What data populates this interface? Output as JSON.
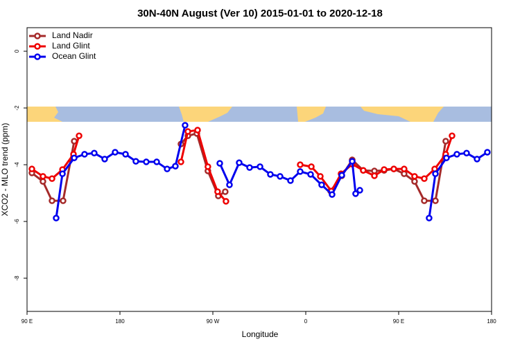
{
  "chart_data": {
    "type": "line",
    "title": "30N-40N August (Ver 10)   2015-01-01 to 2020-12-18",
    "x_label": "Longitude",
    "y_label": "XCO2 - MLO trend (ppm)",
    "xlim": [
      90,
      540
    ],
    "ylim": [
      -9.17,
      0.83
    ],
    "xticks": [
      {
        "value": 90,
        "label": "90 E"
      },
      {
        "value": 180,
        "label": "180"
      },
      {
        "value": 270,
        "label": "90 W"
      },
      {
        "value": 360,
        "label": "0"
      },
      {
        "value": 450,
        "label": "90 E"
      },
      {
        "value": 540,
        "label": "180"
      }
    ],
    "yticks": [
      0,
      -2,
      -4,
      -6,
      -8
    ],
    "legend": "top-left",
    "series": [
      {
        "name": "Land Nadir",
        "color": "#a52a2a",
        "x": [
          94.7,
          105.4,
          114.2,
          124.9,
          135.7,
          null,
          239.1,
          245.8,
          254.5,
          265.2,
          275.3,
          282.0,
          null,
          384.1,
          394.9,
          405.0,
          415.7,
          426.5,
          435.9,
          445.3,
          455.3,
          465.4,
          474.8,
          485.6,
          495.6
        ],
        "values": [
          -4.29,
          -4.59,
          -5.27,
          -5.27,
          -3.17,
          null,
          -3.27,
          -2.98,
          -2.9,
          -4.22,
          -5.1,
          -4.95,
          null,
          -4.93,
          -4.39,
          -3.83,
          -4.2,
          -4.22,
          -4.2,
          -4.15,
          -4.32,
          -4.59,
          -5.27,
          -5.27,
          -3.17
        ]
      },
      {
        "name": "Land Glint",
        "color": "#ee0000",
        "x": [
          94.7,
          105.4,
          114.2,
          124.3,
          135.0,
          140.4,
          null,
          239.1,
          245.8,
          255.2,
          265.2,
          274.6,
          282.7,
          null,
          354.6,
          365.4,
          374.1,
          384.8,
          394.2,
          405.0,
          415.7,
          426.5,
          435.9,
          445.3,
          455.3,
          465.4,
          474.8,
          484.9,
          495.6,
          501.7
        ],
        "values": [
          -4.15,
          -4.41,
          -4.49,
          -4.17,
          -3.63,
          -2.98,
          null,
          -3.9,
          -2.83,
          -2.78,
          -4.07,
          -4.95,
          -5.29,
          null,
          -4.0,
          -4.07,
          -4.41,
          -4.93,
          -4.32,
          -3.98,
          -4.2,
          -4.39,
          -4.17,
          -4.15,
          -4.15,
          -4.41,
          -4.49,
          -4.15,
          -3.63,
          -2.98
        ]
      },
      {
        "name": "Ocean Glint",
        "color": "#0000ee",
        "x": [
          118.2,
          124.3,
          135.7,
          145.7,
          155.1,
          165.2,
          175.3,
          185.4,
          195.4,
          205.5,
          215.6,
          225.7,
          233.7,
          243.1,
          null,
          276.7,
          286.1,
          295.5,
          305.6,
          315.7,
          325.7,
          335.1,
          345.2,
          354.6,
          364.7,
          375.4,
          385.5,
          394.9,
          405.0,
          408.3,
          412.4,
          null,
          479.5,
          485.6,
          496.3,
          506.4,
          515.8,
          525.9,
          535.9
        ],
        "values": [
          -5.88,
          -4.32,
          -3.76,
          -3.63,
          -3.59,
          -3.8,
          -3.56,
          -3.63,
          -3.88,
          -3.9,
          -3.9,
          -4.15,
          -4.05,
          -2.61,
          null,
          -3.95,
          -4.71,
          -3.93,
          -4.1,
          -4.07,
          -4.34,
          -4.41,
          -4.56,
          -4.24,
          -4.34,
          -4.71,
          -5.05,
          -4.37,
          -3.88,
          -5.02,
          -4.9,
          null,
          -5.88,
          -4.32,
          -3.76,
          -3.63,
          -3.59,
          -3.8,
          -3.56
        ]
      }
    ]
  }
}
